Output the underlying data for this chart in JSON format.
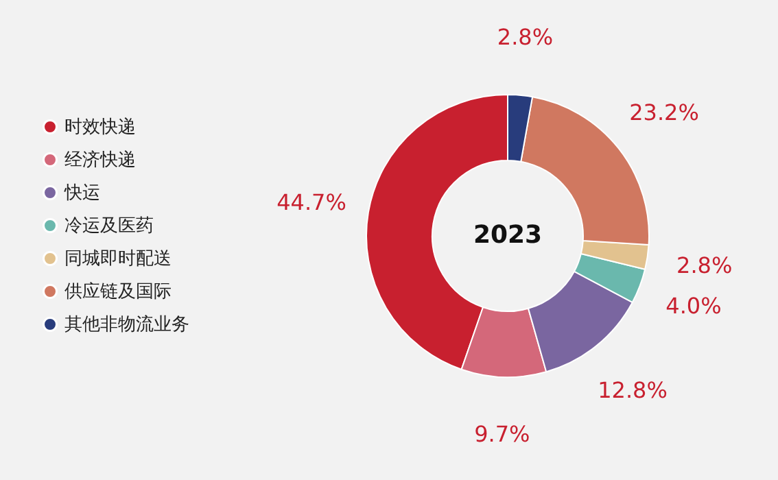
{
  "chart_data": {
    "type": "donut",
    "title": "2023",
    "categories": [
      "时效快递",
      "经济快递",
      "快运",
      "冷运及医药",
      "同城即时配送",
      "供应链及国际",
      "其他非物流业务"
    ],
    "values": [
      44.7,
      9.7,
      12.8,
      4.0,
      2.8,
      23.2,
      2.8
    ],
    "colors": [
      "#c8202f",
      "#d4687a",
      "#7a66a0",
      "#6ab8ad",
      "#e2c28f",
      "#d07860",
      "#283c7c"
    ],
    "value_labels": [
      "44.7%",
      "9.7%",
      "12.8%",
      "4.0%",
      "2.8%",
      "23.2%",
      "2.8%"
    ],
    "legend": "left"
  }
}
